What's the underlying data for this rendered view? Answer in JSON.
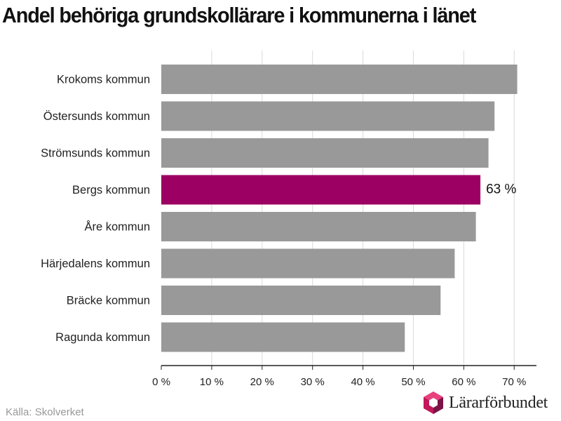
{
  "title": "Andel behöriga grundskollärare i kommunerna i länet",
  "source": "Källa: Skolverket",
  "logo": {
    "text": "Lärarförbundet",
    "icon": "hexagon-logo-icon",
    "colors": [
      "#e8407b",
      "#c2185b",
      "#7b1346"
    ]
  },
  "colors": {
    "bar": "#999999",
    "highlight": "#9c0062",
    "grid": "#d9d9d9",
    "axis": "#222222"
  },
  "chart_data": {
    "type": "bar",
    "orientation": "horizontal",
    "categories": [
      "Krokoms kommun",
      "Östersunds kommun",
      "Strömsunds kommun",
      "Bergs kommun",
      "Åre kommun",
      "Härjedalens kommun",
      "Bräcke kommun",
      "Ragunda kommun"
    ],
    "values": [
      70.6,
      66.1,
      64.9,
      63.3,
      62.4,
      58.2,
      55.4,
      48.3
    ],
    "highlight_index": 3,
    "data_label": {
      "index": 3,
      "text": "63 %"
    },
    "xlim": [
      0,
      74
    ],
    "xticks": [
      0,
      10,
      20,
      30,
      40,
      50,
      60,
      70
    ],
    "xtick_labels": [
      "0 %",
      "10 %",
      "20 %",
      "30 %",
      "40 %",
      "50 %",
      "60 %",
      "70 %"
    ],
    "grid": true
  }
}
